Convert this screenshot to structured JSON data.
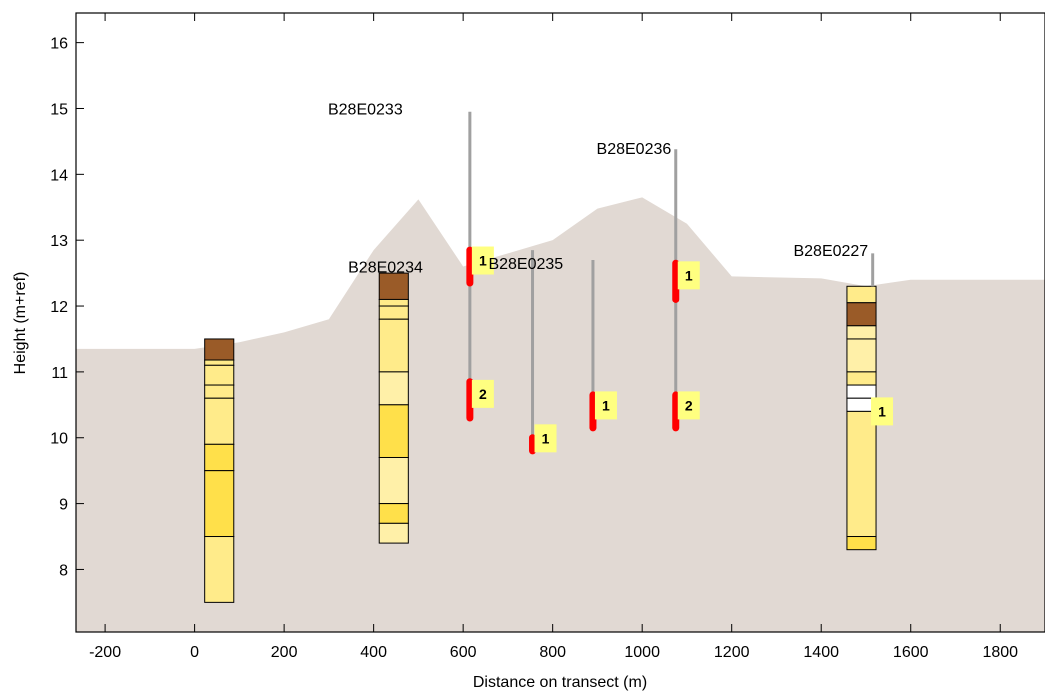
{
  "chart_data": {
    "type": "cross-section",
    "xlabel": "Distance on transect (m)",
    "ylabel": "Height (m+ref)",
    "xlim": [
      -265,
      1900
    ],
    "ylim": [
      7.05,
      16.45
    ],
    "xticks": [
      -200,
      0,
      200,
      400,
      600,
      800,
      1000,
      1200,
      1400,
      1600,
      1800
    ],
    "yticks": [
      8,
      9,
      10,
      11,
      12,
      13,
      14,
      15,
      16
    ],
    "grid": false,
    "colors": {
      "terrain": "#e1d9d3",
      "well_line": "#a0a0a0",
      "screen": "#ff0000",
      "marker_bg": "#ffff80",
      "clay": "#9a5b28",
      "sand_pale": "#fff0a8",
      "sand_light": "#ffeb8a",
      "sand_medium": "#ffe04a",
      "sand_white": "#ffffff"
    },
    "terrain_profile": [
      {
        "x": -265,
        "y": 11.35
      },
      {
        "x": 0,
        "y": 11.35
      },
      {
        "x": 100,
        "y": 11.45
      },
      {
        "x": 200,
        "y": 11.6
      },
      {
        "x": 300,
        "y": 11.8
      },
      {
        "x": 400,
        "y": 12.85
      },
      {
        "x": 500,
        "y": 13.62
      },
      {
        "x": 600,
        "y": 12.6
      },
      {
        "x": 700,
        "y": 12.8
      },
      {
        "x": 800,
        "y": 13.0
      },
      {
        "x": 900,
        "y": 13.48
      },
      {
        "x": 1000,
        "y": 13.65
      },
      {
        "x": 1100,
        "y": 13.25
      },
      {
        "x": 1200,
        "y": 12.45
      },
      {
        "x": 1400,
        "y": 12.42
      },
      {
        "x": 1500,
        "y": 12.3
      },
      {
        "x": 1600,
        "y": 12.4
      },
      {
        "x": 1900,
        "y": 12.4
      }
    ],
    "wells": [
      {
        "name": "B28E0233",
        "x": 615,
        "top": 14.95,
        "bottom": 10.3,
        "screens": [
          {
            "top": 12.85,
            "bottom": 12.35,
            "label": "1"
          },
          {
            "top": 10.85,
            "bottom": 10.3,
            "label": "2"
          }
        ]
      },
      {
        "name": "B28E0234",
        "x": 615,
        "top": 12.6,
        "bottom": 12.6,
        "screens": []
      },
      {
        "name": "B28E0235",
        "x": 755,
        "top": 12.85,
        "bottom": 9.8,
        "screens": [
          {
            "top": 10.0,
            "bottom": 9.8,
            "label": "1"
          }
        ]
      },
      {
        "name": "",
        "x": 890,
        "top": 12.7,
        "bottom": 10.15,
        "screens": [
          {
            "top": 10.65,
            "bottom": 10.15,
            "label": "1"
          }
        ]
      },
      {
        "name": "B28E0236",
        "x": 1075,
        "top": 14.38,
        "bottom": 10.15,
        "screens": [
          {
            "top": 12.65,
            "bottom": 12.1,
            "label": "1"
          },
          {
            "top": 10.65,
            "bottom": 10.15,
            "label": "2"
          }
        ]
      },
      {
        "name": "B28E0227",
        "x": 1515,
        "top": 12.8,
        "bottom": 12.3,
        "screens": [],
        "marker": {
          "y": 10.4,
          "label": "1"
        }
      }
    ],
    "boreholes": [
      {
        "x": 55,
        "width": 65,
        "top": 11.5,
        "bottom": 7.5,
        "layers": [
          {
            "top": 11.5,
            "bottom": 11.18,
            "kind": "clay"
          },
          {
            "top": 11.18,
            "bottom": 11.1,
            "kind": "sand_light"
          },
          {
            "top": 11.1,
            "bottom": 10.8,
            "kind": "sand_light"
          },
          {
            "top": 10.8,
            "bottom": 10.6,
            "kind": "sand_light"
          },
          {
            "top": 10.6,
            "bottom": 9.9,
            "kind": "sand_light"
          },
          {
            "top": 9.9,
            "bottom": 9.5,
            "kind": "sand_medium"
          },
          {
            "top": 9.5,
            "bottom": 8.5,
            "kind": "sand_medium"
          },
          {
            "top": 8.5,
            "bottom": 7.5,
            "kind": "sand_light"
          }
        ]
      },
      {
        "x": 445,
        "width": 65,
        "top": 12.5,
        "bottom": 8.4,
        "layers": [
          {
            "top": 12.5,
            "bottom": 12.1,
            "kind": "clay"
          },
          {
            "top": 12.1,
            "bottom": 12.0,
            "kind": "sand_light"
          },
          {
            "top": 12.0,
            "bottom": 11.8,
            "kind": "sand_light"
          },
          {
            "top": 11.8,
            "bottom": 11.0,
            "kind": "sand_light"
          },
          {
            "top": 11.0,
            "bottom": 10.5,
            "kind": "sand_pale"
          },
          {
            "top": 10.5,
            "bottom": 9.7,
            "kind": "sand_medium"
          },
          {
            "top": 9.7,
            "bottom": 9.0,
            "kind": "sand_pale"
          },
          {
            "top": 9.0,
            "bottom": 8.7,
            "kind": "sand_medium"
          },
          {
            "top": 8.7,
            "bottom": 8.4,
            "kind": "sand_pale"
          }
        ]
      },
      {
        "x": 1490,
        "width": 65,
        "top": 12.3,
        "bottom": 8.3,
        "layers": [
          {
            "top": 12.3,
            "bottom": 12.05,
            "kind": "sand_light"
          },
          {
            "top": 12.05,
            "bottom": 11.7,
            "kind": "clay"
          },
          {
            "top": 11.7,
            "bottom": 11.5,
            "kind": "sand_pale"
          },
          {
            "top": 11.5,
            "bottom": 11.0,
            "kind": "sand_pale"
          },
          {
            "top": 11.0,
            "bottom": 10.8,
            "kind": "sand_light"
          },
          {
            "top": 10.8,
            "bottom": 10.6,
            "kind": "sand_white"
          },
          {
            "top": 10.6,
            "bottom": 10.4,
            "kind": "sand_white"
          },
          {
            "top": 10.4,
            "bottom": 8.5,
            "kind": "sand_light"
          },
          {
            "top": 8.5,
            "bottom": 8.3,
            "kind": "sand_medium"
          }
        ]
      }
    ],
    "labels": [
      {
        "text": "B28E0233",
        "x": 465,
        "y": 15.0,
        "anchor": "end"
      },
      {
        "text": "B28E0234",
        "x": 510,
        "y": 12.6,
        "anchor": "end"
      },
      {
        "text": "B28E0235",
        "x": 740,
        "y": 12.65,
        "anchor": "middle"
      },
      {
        "text": "B28E0236",
        "x": 1065,
        "y": 14.4,
        "anchor": "end"
      },
      {
        "text": "B28E0227",
        "x": 1505,
        "y": 12.85,
        "anchor": "end"
      }
    ]
  }
}
